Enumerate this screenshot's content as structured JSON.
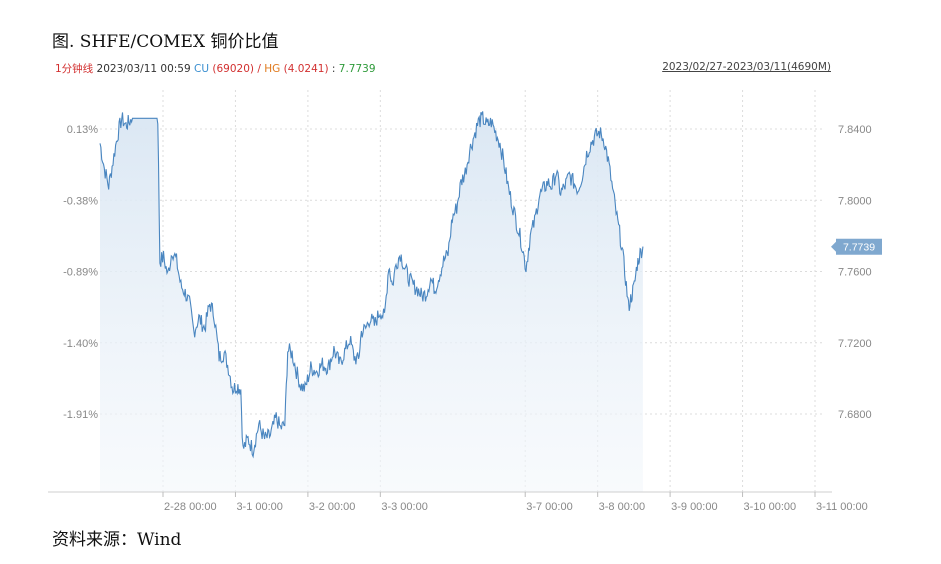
{
  "title": "图. SHFE/COMEX 铜价比值",
  "source": "资料来源：Wind",
  "info_bar": {
    "period": "1分钟线",
    "datetime": "2023/03/11 00:59",
    "cu_label": "CU",
    "cu_value": "(69020)",
    "separator": "/",
    "hg_label": "HG",
    "hg_value": "(4.0241)",
    "colon": ":",
    "ratio": "7.7739"
  },
  "range_label": "2023/02/27-2023/03/11(4690M)",
  "colors": {
    "line": "#4a86c0",
    "fill_top": "#dbe7f4",
    "badge": "#7fa8cf",
    "grid": "#d8d8d8"
  },
  "chart_data": {
    "type": "area",
    "ylim": [
      7.648,
      7.85
    ],
    "ylim_right": [
      7.648,
      7.85
    ],
    "left_ticks": [
      {
        "label": "0.13%",
        "value": 7.84
      },
      {
        "label": "-0.38%",
        "value": 7.8
      },
      {
        "label": "-0.89%",
        "value": 7.76
      },
      {
        "label": "-1.40%",
        "value": 7.72
      },
      {
        "label": "-1.91%",
        "value": 7.68
      }
    ],
    "right_ticks": [
      {
        "label": "7.8400",
        "value": 7.84
      },
      {
        "label": "7.8000",
        "value": 7.8
      },
      {
        "label": "7.7600",
        "value": 7.76
      },
      {
        "label": "7.7200",
        "value": 7.72
      },
      {
        "label": "7.6800",
        "value": 7.68
      }
    ],
    "x_ticks": [
      {
        "label": "2-28 00:00",
        "x": 0.1
      },
      {
        "label": "3-1 00:00",
        "x": 0.2
      },
      {
        "label": "3-2 00:00",
        "x": 0.3
      },
      {
        "label": "3-3 00:00",
        "x": 0.4
      },
      {
        "label": "3-7 00:00",
        "x": 0.6
      },
      {
        "label": "3-8 00:00",
        "x": 0.7
      },
      {
        "label": "3-9 00:00",
        "x": 0.8
      },
      {
        "label": "3-10 00:00",
        "x": 0.9
      },
      {
        "label": "3-11 00:00",
        "x": 1.0
      }
    ],
    "last_value": "7.7739",
    "series": [
      {
        "points": [
          [
            0.0,
            7.832
          ],
          [
            0.006,
            7.818
          ],
          [
            0.012,
            7.808
          ],
          [
            0.018,
            7.822
          ],
          [
            0.024,
            7.836
          ],
          [
            0.03,
            7.846
          ],
          [
            0.036,
            7.842
          ],
          [
            0.04,
            7.844
          ],
          [
            0.045,
            7.846
          ],
          [
            0.055,
            7.846
          ],
          [
            0.065,
            7.846
          ],
          [
            0.075,
            7.846
          ],
          [
            0.08,
            7.846
          ],
          [
            0.083,
            7.766
          ],
          [
            0.088,
            7.768
          ],
          [
            0.094,
            7.758
          ],
          [
            0.1,
            7.772
          ],
          [
            0.106,
            7.766
          ],
          [
            0.112,
            7.752
          ],
          [
            0.118,
            7.748
          ],
          [
            0.124,
            7.742
          ],
          [
            0.13,
            7.726
          ],
          [
            0.137,
            7.734
          ],
          [
            0.145,
            7.728
          ],
          [
            0.152,
            7.742
          ],
          [
            0.158,
            7.736
          ],
          [
            0.165,
            7.712
          ],
          [
            0.172,
            7.714
          ],
          [
            0.178,
            7.706
          ],
          [
            0.184,
            7.694
          ],
          [
            0.19,
            7.696
          ],
          [
            0.195,
            7.694
          ],
          [
            0.198,
            7.66
          ],
          [
            0.205,
            7.666
          ],
          [
            0.212,
            7.66
          ],
          [
            0.22,
            7.674
          ],
          [
            0.228,
            7.666
          ],
          [
            0.236,
            7.668
          ],
          [
            0.244,
            7.678
          ],
          [
            0.25,
            7.672
          ],
          [
            0.256,
            7.674
          ],
          [
            0.26,
            7.716
          ],
          [
            0.266,
            7.714
          ],
          [
            0.272,
            7.704
          ],
          [
            0.278,
            7.696
          ],
          [
            0.284,
            7.694
          ],
          [
            0.292,
            7.706
          ],
          [
            0.3,
            7.704
          ],
          [
            0.308,
            7.708
          ],
          [
            0.316,
            7.706
          ],
          [
            0.324,
            7.716
          ],
          [
            0.332,
            7.708
          ],
          [
            0.34,
            7.716
          ],
          [
            0.346,
            7.722
          ],
          [
            0.352,
            7.712
          ],
          [
            0.358,
            7.71
          ],
          [
            0.362,
            7.726
          ],
          [
            0.368,
            7.728
          ],
          [
            0.374,
            7.734
          ],
          [
            0.38,
            7.73
          ],
          [
            0.388,
            7.738
          ],
          [
            0.394,
            7.734
          ],
          [
            0.4,
            7.764
          ],
          [
            0.405,
            7.752
          ],
          [
            0.41,
            7.764
          ],
          [
            0.416,
            7.77
          ],
          [
            0.422,
            7.762
          ],
          [
            0.428,
            7.756
          ],
          [
            0.434,
            7.752
          ],
          [
            0.44,
            7.75
          ],
          [
            0.446,
            7.746
          ],
          [
            0.452,
            7.748
          ],
          [
            0.458,
            7.756
          ],
          [
            0.464,
            7.75
          ],
          [
            0.47,
            7.758
          ],
          [
            0.476,
            7.766
          ],
          [
            0.482,
            7.77
          ],
          [
            0.488,
            7.79
          ],
          [
            0.494,
            7.796
          ],
          [
            0.5,
            7.81
          ],
          [
            0.506,
            7.816
          ],
          [
            0.512,
            7.828
          ],
          [
            0.518,
            7.836
          ],
          [
            0.524,
            7.844
          ],
          [
            0.53,
            7.846
          ],
          [
            0.536,
            7.842
          ],
          [
            0.542,
            7.844
          ],
          [
            0.548,
            7.838
          ],
          [
            0.554,
            7.832
          ],
          [
            0.56,
            7.82
          ],
          [
            0.566,
            7.806
          ],
          [
            0.572,
            7.796
          ],
          [
            0.578,
            7.786
          ],
          [
            0.584,
            7.776
          ],
          [
            0.59,
            7.762
          ],
          [
            0.596,
            7.78
          ],
          [
            0.602,
            7.788
          ],
          [
            0.608,
            7.802
          ],
          [
            0.614,
            7.806
          ],
          [
            0.62,
            7.81
          ],
          [
            0.626,
            7.808
          ],
          [
            0.632,
            7.816
          ],
          [
            0.638,
            7.804
          ],
          [
            0.644,
            7.808
          ],
          [
            0.65,
            7.814
          ],
          [
            0.656,
            7.81
          ],
          [
            0.662,
            7.806
          ],
          [
            0.668,
            7.814
          ],
          [
            0.674,
            7.826
          ],
          [
            0.68,
            7.832
          ],
          [
            0.686,
            7.836
          ],
          [
            0.692,
            7.838
          ],
          [
            0.698,
            7.834
          ],
          [
            0.704,
            7.822
          ],
          [
            0.71,
            7.806
          ],
          [
            0.716,
            7.79
          ],
          [
            0.722,
            7.776
          ],
          [
            0.728,
            7.756
          ],
          [
            0.732,
            7.74
          ],
          [
            0.736,
            7.746
          ],
          [
            0.74,
            7.752
          ],
          [
            0.744,
            7.764
          ],
          [
            0.748,
            7.77
          ],
          [
            0.752,
            7.774
          ]
        ]
      }
    ]
  }
}
